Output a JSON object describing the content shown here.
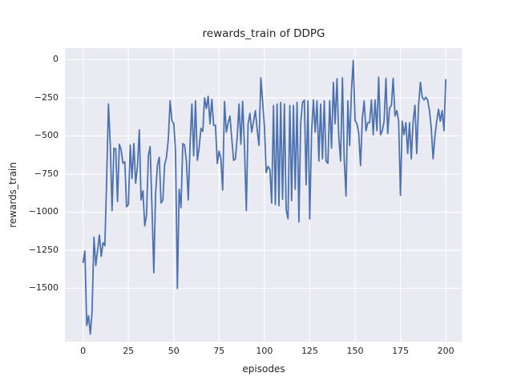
{
  "chart_data": {
    "type": "line",
    "title": "rewards_train of DDPG",
    "xlabel": "episodes",
    "ylabel": "rewards_train",
    "grid": true,
    "legend": false,
    "panel_bg": "#eaeaf2",
    "grid_color": "#ffffff",
    "text_color": "#262626",
    "xlim": [
      -10,
      209
    ],
    "ylim": [
      -1850,
      76
    ],
    "x_ticks": [
      0,
      25,
      50,
      75,
      100,
      125,
      150,
      175,
      200
    ],
    "x_tick_labels": [
      "0",
      "25",
      "50",
      "75",
      "100",
      "125",
      "150",
      "175",
      "200"
    ],
    "y_ticks": [
      0,
      -250,
      -500,
      -750,
      -1000,
      -1250,
      -1500
    ],
    "y_tick_labels": [
      "0",
      "−250",
      "−500",
      "−750",
      "−1000",
      "−1250",
      "−1500"
    ],
    "series": [
      {
        "name": "rewards_train",
        "color": "#4c72b0",
        "x_start": 0,
        "x_step": 1,
        "values": [
          -1330,
          -1255,
          -1745,
          -1680,
          -1800,
          -1650,
          -1165,
          -1350,
          -1250,
          -1150,
          -1290,
          -1200,
          -1220,
          -800,
          -290,
          -560,
          -990,
          -580,
          -585,
          -930,
          -555,
          -590,
          -680,
          -670,
          -965,
          -950,
          -560,
          -780,
          -550,
          -810,
          -700,
          -460,
          -920,
          -860,
          -1090,
          -1020,
          -630,
          -570,
          -970,
          -1398,
          -880,
          -690,
          -640,
          -940,
          -920,
          -690,
          -640,
          -520,
          -270,
          -400,
          -420,
          -600,
          -1500,
          -850,
          -970,
          -550,
          -560,
          -670,
          -920,
          -560,
          -290,
          -630,
          -270,
          -660,
          -580,
          -450,
          -470,
          -250,
          -320,
          -240,
          -420,
          -260,
          -430,
          -430,
          -680,
          -600,
          -650,
          -855,
          -275,
          -475,
          -415,
          -370,
          -520,
          -660,
          -650,
          -510,
          -290,
          -555,
          -273,
          -570,
          -990,
          -420,
          -352,
          -475,
          -405,
          -334,
          -457,
          -562,
          -120,
          -270,
          -440,
          -740,
          -700,
          -720,
          -940,
          -300,
          -950,
          -290,
          -958,
          -280,
          -915,
          -290,
          -985,
          -1043,
          -300,
          -925,
          -300,
          -850,
          -280,
          -1065,
          -420,
          -280,
          -265,
          -820,
          -270,
          -1045,
          -475,
          -264,
          -475,
          -270,
          -665,
          -290,
          -650,
          -270,
          -665,
          -680,
          -270,
          -580,
          -149,
          -420,
          -125,
          -500,
          -665,
          -120,
          -650,
          -895,
          -270,
          -563,
          -200,
          -5,
          -400,
          -420,
          -480,
          -695,
          -378,
          -270,
          -466,
          -413,
          -413,
          -264,
          -493,
          -264,
          -466,
          -114,
          -493,
          -466,
          -404,
          -122,
          -484,
          -316,
          -300,
          -122,
          -369,
          -334,
          -400,
          -890,
          -404,
          -492,
          -413,
          -615,
          -413,
          -650,
          -404,
          -299,
          -615,
          -299,
          -148,
          -246,
          -264,
          -246,
          -264,
          -334,
          -448,
          -650,
          -500,
          -404,
          -325,
          -404,
          -334,
          -466,
          -131
        ]
      }
    ]
  }
}
